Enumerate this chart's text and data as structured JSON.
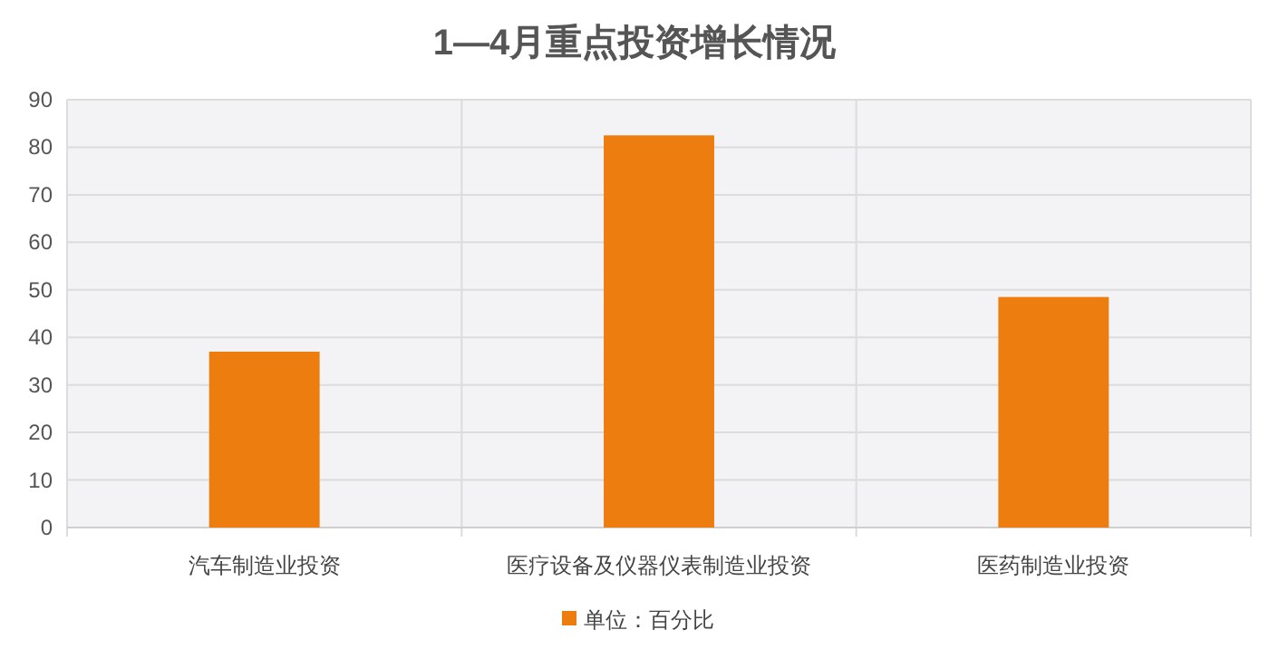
{
  "chart_data": {
    "type": "bar",
    "title": "1—4月重点投资增长情况",
    "categories": [
      "汽车制造业投资",
      "医疗设备及仪器仪表制造业投资",
      "医药制造业投资"
    ],
    "series": [
      {
        "name": "单位：百分比",
        "color": "#ed7d0e",
        "values": [
          37,
          82.5,
          48.5
        ]
      }
    ],
    "ylim": [
      0,
      90
    ],
    "yticks": [
      0,
      10,
      20,
      30,
      40,
      50,
      60,
      70,
      80,
      90
    ],
    "grid": true,
    "legend": "bottom"
  }
}
